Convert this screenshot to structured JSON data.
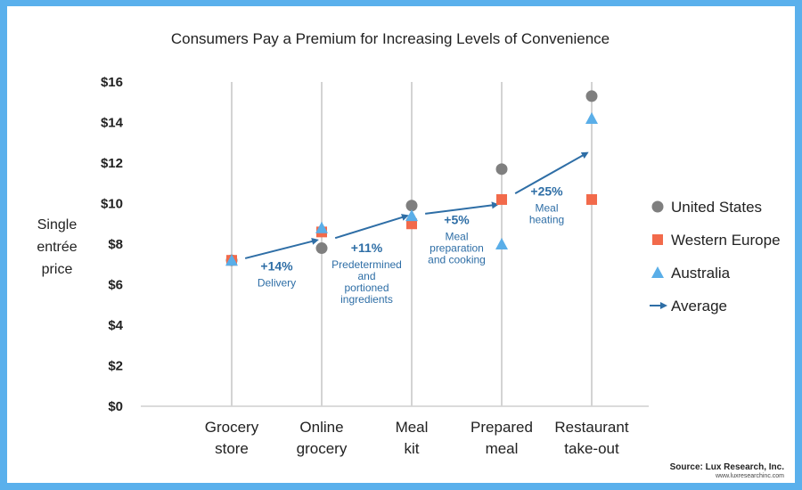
{
  "chart_data": {
    "type": "scatter",
    "title": "Consumers Pay a Premium for Increasing Levels of Convenience",
    "ylabel": [
      "Single",
      "entrée",
      "price"
    ],
    "ylim": [
      0,
      16
    ],
    "yticks": [
      "$0",
      "$2",
      "$4",
      "$6",
      "$8",
      "$10",
      "$12",
      "$14",
      "$16"
    ],
    "categories": [
      [
        "Grocery",
        "store"
      ],
      [
        "Online",
        "grocery"
      ],
      [
        "Meal",
        "kit"
      ],
      [
        "Prepared",
        "meal"
      ],
      [
        "Restaurant",
        "take-out"
      ]
    ],
    "series": [
      {
        "name": "United States",
        "marker": "circle",
        "color": "#7f7f7f",
        "values": [
          7.2,
          7.8,
          9.9,
          11.7,
          15.3
        ]
      },
      {
        "name": "Western Europe",
        "marker": "square",
        "color": "#f26a4b",
        "values": [
          7.2,
          8.6,
          9.0,
          10.2,
          10.2
        ]
      },
      {
        "name": "Australia",
        "marker": "triangle",
        "color": "#5aaee8",
        "values": [
          7.2,
          8.8,
          9.4,
          8.0,
          14.2
        ]
      }
    ],
    "average": {
      "name": "Average",
      "color": "#2e6ea6",
      "segments": [
        {
          "from": [
            0.15,
            7.3
          ],
          "to": [
            0.95,
            8.2
          ],
          "pct": "+14%",
          "label": [
            "Delivery"
          ],
          "label_at": [
            0.5,
            6.7
          ]
        },
        {
          "from": [
            1.15,
            8.3
          ],
          "to": [
            1.95,
            9.4
          ],
          "pct": "+11%",
          "label": [
            "Predetermined",
            "and",
            "portioned",
            "ingredients"
          ],
          "label_at": [
            1.5,
            7.6
          ]
        },
        {
          "from": [
            2.15,
            9.5
          ],
          "to": [
            2.95,
            9.95
          ],
          "pct": "+5%",
          "label": [
            "Meal",
            "preparation",
            "and cooking"
          ],
          "label_at": [
            2.5,
            9.0
          ]
        },
        {
          "from": [
            3.15,
            10.5
          ],
          "to": [
            3.95,
            12.5
          ],
          "pct": "+25%",
          "label": [
            "Meal",
            "heating"
          ],
          "label_at": [
            3.5,
            10.4
          ]
        }
      ]
    },
    "legend_position": "right",
    "source": "Source: Lux Research, Inc.",
    "source_url": "www.luxresearchinc.com"
  }
}
